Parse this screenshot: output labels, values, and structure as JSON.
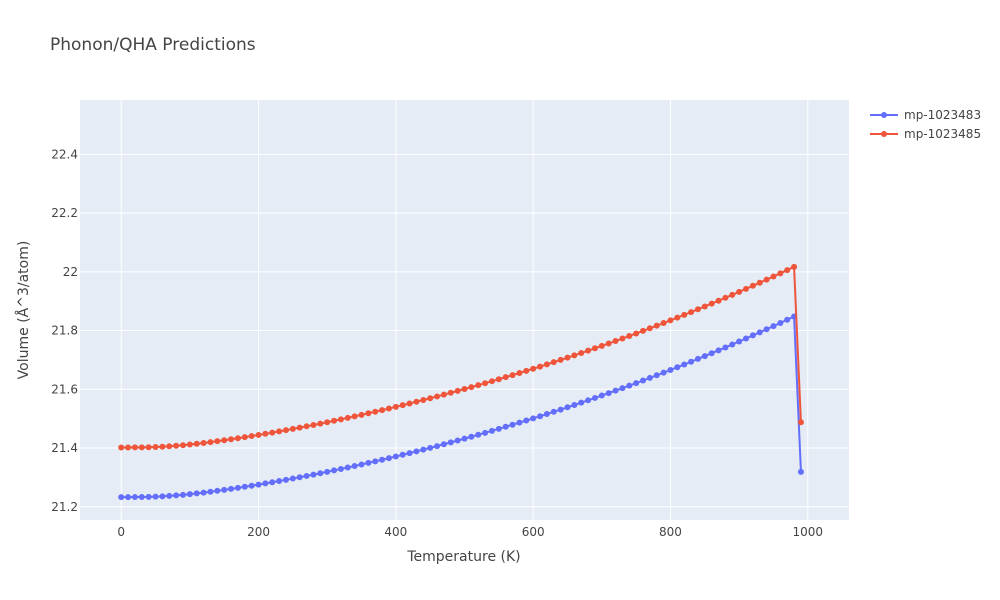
{
  "chart_data": {
    "type": "line",
    "title": "Phonon/QHA Predictions",
    "xlabel": "Temperature (K)",
    "ylabel": "Volume (Å^3/atom)",
    "xlim": [
      -60,
      1060
    ],
    "ylim": [
      21.155,
      22.585
    ],
    "xticks": [
      0,
      200,
      400,
      600,
      800,
      1000
    ],
    "xtick_labels": [
      "0",
      "200",
      "400",
      "600",
      "800",
      "1000"
    ],
    "yticks": [
      21.2,
      21.4,
      21.6,
      21.8,
      22.0,
      22.2,
      22.4
    ],
    "ytick_labels": [
      "21.2",
      "21.4",
      "21.6",
      "21.8",
      "22",
      "22.2",
      "22.4"
    ],
    "grid": true,
    "legend_position": "top-right",
    "background": "#e5ecf6",
    "x": [
      0,
      10,
      20,
      30,
      40,
      50,
      60,
      70,
      80,
      90,
      100,
      110,
      120,
      130,
      140,
      150,
      160,
      170,
      180,
      190,
      200,
      210,
      220,
      230,
      240,
      250,
      260,
      270,
      280,
      290,
      300,
      310,
      320,
      330,
      340,
      350,
      360,
      370,
      380,
      390,
      400,
      410,
      420,
      430,
      440,
      450,
      460,
      470,
      480,
      490,
      500,
      510,
      520,
      530,
      540,
      550,
      560,
      570,
      580,
      590,
      600,
      610,
      620,
      630,
      640,
      650,
      660,
      670,
      680,
      690,
      700,
      710,
      720,
      730,
      740,
      750,
      760,
      770,
      780,
      790,
      800,
      810,
      820,
      830,
      840,
      850,
      860,
      870,
      880,
      890,
      900,
      910,
      920,
      930,
      940,
      950,
      960,
      970,
      980,
      990
    ],
    "series": [
      {
        "name": "mp-1023483",
        "color": "#636efa",
        "values": [
          21.233,
          21.233,
          21.2331,
          21.2334,
          21.2338,
          21.2345,
          21.2356,
          21.237,
          21.2387,
          21.2407,
          21.243,
          21.2456,
          21.2483,
          21.2513,
          21.2544,
          21.2576,
          21.261,
          21.2645,
          21.2681,
          21.2718,
          21.2756,
          21.2795,
          21.2835,
          21.2876,
          21.2918,
          21.2961,
          21.3005,
          21.305,
          21.3096,
          21.3142,
          21.319,
          21.3238,
          21.3288,
          21.3338,
          21.3389,
          21.3441,
          21.3494,
          21.3547,
          21.3602,
          21.3657,
          21.3713,
          21.377,
          21.3828,
          21.3887,
          21.3946,
          21.4006,
          21.4067,
          21.4129,
          21.4192,
          21.4255,
          21.432,
          21.4385,
          21.4451,
          21.4518,
          21.4586,
          21.4654,
          21.4724,
          21.4794,
          21.4865,
          21.4937,
          21.501,
          21.5084,
          21.5158,
          21.5234,
          21.531,
          21.5388,
          21.5466,
          21.5545,
          21.5625,
          21.5706,
          21.5788,
          21.5871,
          21.5954,
          21.6039,
          21.6125,
          21.6211,
          21.6299,
          21.6387,
          21.6477,
          21.6567,
          21.6658,
          21.6751,
          21.6844,
          21.6938,
          21.7034,
          21.713,
          21.7228,
          21.7326,
          21.7425,
          21.7526,
          21.7627,
          21.773,
          21.7834,
          21.7939,
          21.8044,
          21.8151,
          21.8259,
          21.8369,
          21.8479,
          21.319
        ]
      },
      {
        "name": "mp-1023485",
        "color": "#ef553b",
        "values": [
          21.402,
          21.402,
          21.4021,
          21.4024,
          21.4028,
          21.4035,
          21.4046,
          21.406,
          21.4077,
          21.4097,
          21.412,
          21.4146,
          21.4173,
          21.4203,
          21.4234,
          21.4266,
          21.43,
          21.4335,
          21.4371,
          21.4408,
          21.4446,
          21.4485,
          21.4525,
          21.4566,
          21.4608,
          21.4651,
          21.4695,
          21.474,
          21.4786,
          21.4832,
          21.488,
          21.4928,
          21.4978,
          21.5028,
          21.5079,
          21.5131,
          21.5184,
          21.5237,
          21.5292,
          21.5347,
          21.5403,
          21.546,
          21.5518,
          21.5577,
          21.5636,
          21.5696,
          21.5757,
          21.5819,
          21.5882,
          21.5945,
          21.601,
          21.6075,
          21.6141,
          21.6208,
          21.6276,
          21.6344,
          21.6414,
          21.6484,
          21.6555,
          21.6627,
          21.67,
          21.6774,
          21.6848,
          21.6924,
          21.7,
          21.7078,
          21.7156,
          21.7235,
          21.7315,
          21.7396,
          21.7478,
          21.7561,
          21.7644,
          21.7729,
          21.7815,
          21.7901,
          21.7989,
          21.8077,
          21.8167,
          21.8257,
          21.8348,
          21.8441,
          21.8534,
          21.8628,
          21.8724,
          21.882,
          21.8918,
          21.9016,
          21.9115,
          21.9216,
          21.9317,
          21.942,
          21.9524,
          21.9629,
          21.9734,
          21.9841,
          21.9949,
          22.0059,
          22.0169,
          21.488
        ]
      }
    ]
  }
}
